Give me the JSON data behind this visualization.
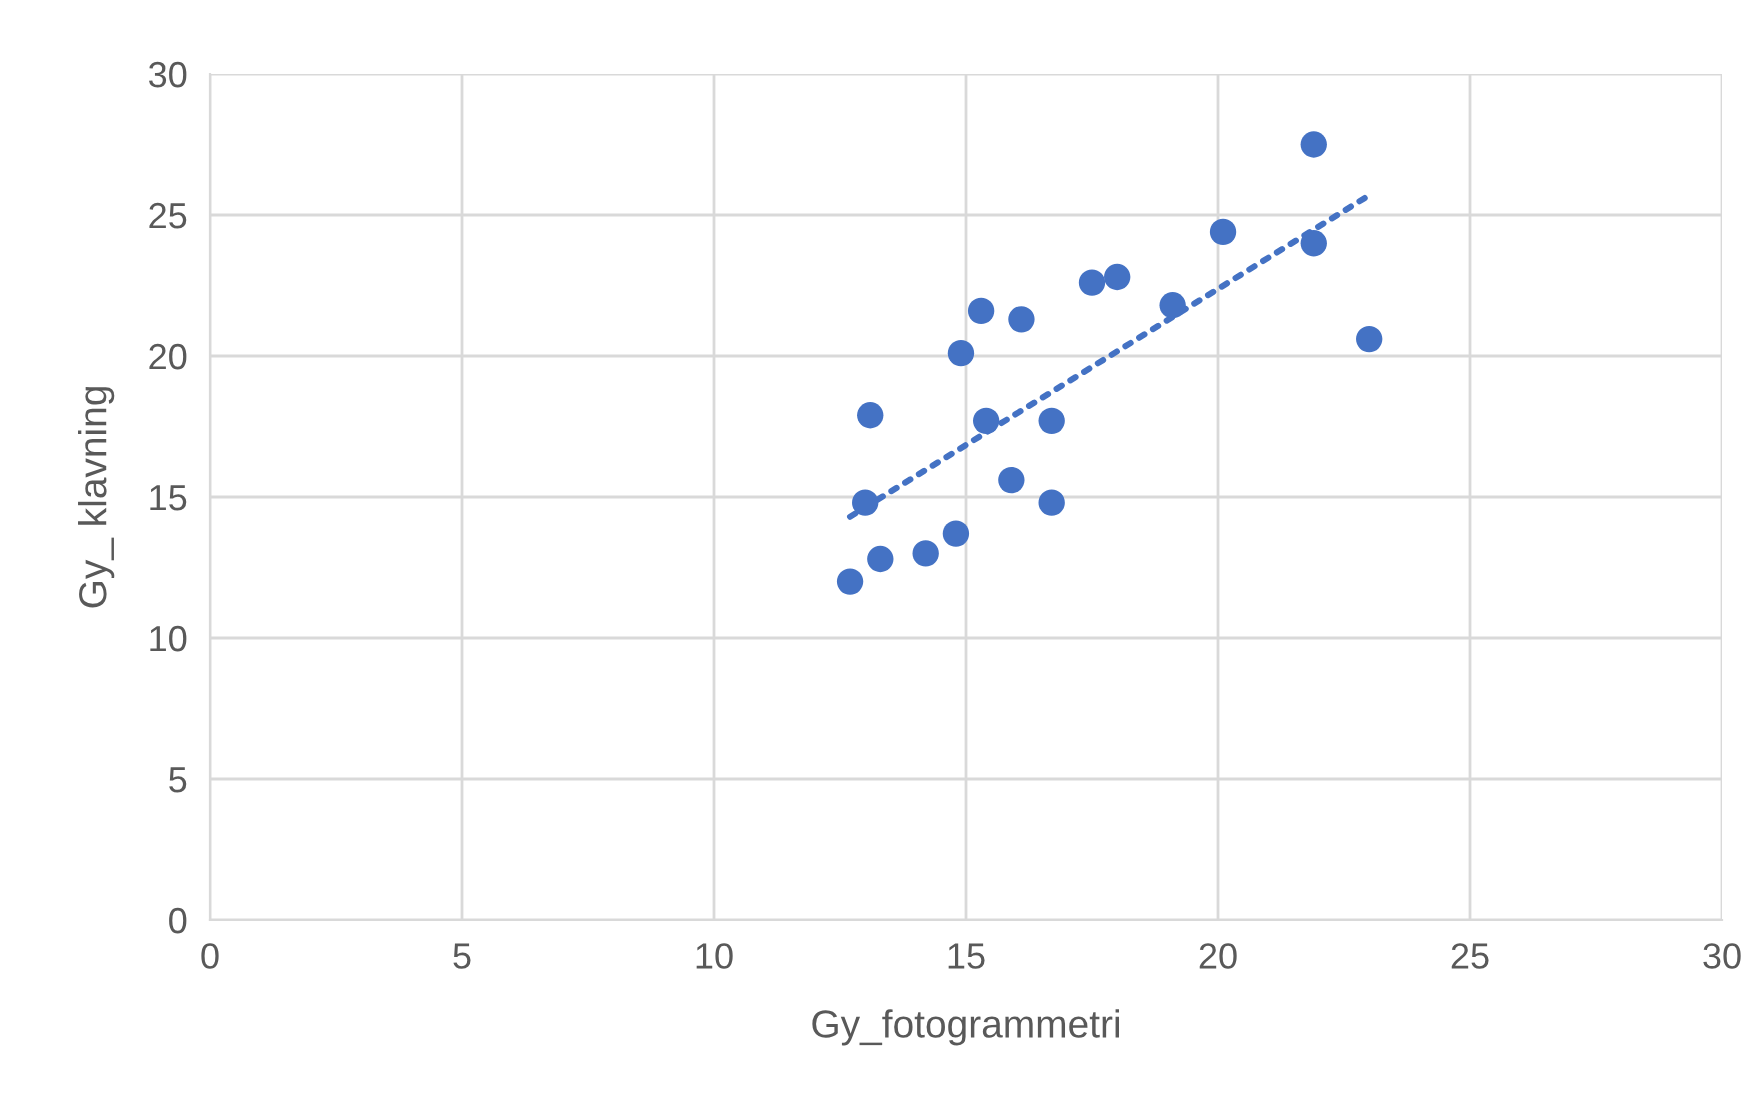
{
  "chart_data": {
    "type": "scatter",
    "xlabel": "Gy_fotogrammetri",
    "ylabel": "Gy_ klavning",
    "x": [
      12.7,
      13.0,
      13.1,
      13.3,
      14.2,
      14.8,
      14.9,
      15.3,
      15.4,
      15.9,
      16.1,
      16.7,
      16.7,
      17.5,
      18.0,
      19.1,
      20.1,
      21.9,
      21.9,
      23.0
    ],
    "series": [
      {
        "color": "#4472c4",
        "marker": "circle",
        "values": [
          12.0,
          14.8,
          17.9,
          12.8,
          13.0,
          13.7,
          20.1,
          21.6,
          17.7,
          15.6,
          21.3,
          17.7,
          14.8,
          22.6,
          22.8,
          21.8,
          24.4,
          27.5,
          24.0,
          20.6
        ]
      },
      {
        "type": "line",
        "color": "#4472c4",
        "line_style": "dotted",
        "x": [
          12.7,
          23.0
        ],
        "values": [
          14.3,
          25.7
        ]
      }
    ],
    "xlim": [
      0,
      30
    ],
    "xticks": [
      0,
      5,
      10,
      15,
      20,
      25,
      30
    ],
    "ylim": [
      0,
      30
    ],
    "yticks": [
      0,
      5,
      10,
      15,
      20,
      25,
      30
    ],
    "grid": true
  }
}
